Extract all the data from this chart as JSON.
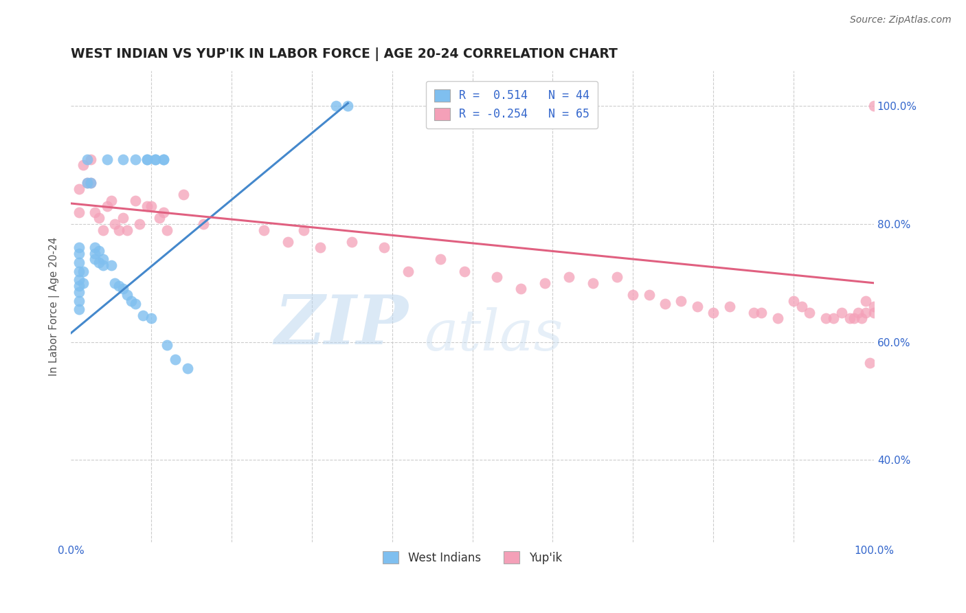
{
  "title": "WEST INDIAN VS YUP'IK IN LABOR FORCE | AGE 20-24 CORRELATION CHART",
  "source": "Source: ZipAtlas.com",
  "ylabel": "In Labor Force | Age 20-24",
  "xlim": [
    0.0,
    1.0
  ],
  "ylim": [
    0.26,
    1.06
  ],
  "blue_color": "#7fbfef",
  "pink_color": "#f4a0b8",
  "line_blue": "#4488cc",
  "line_pink": "#e06080",
  "watermark_zip": "ZIP",
  "watermark_atlas": "atlas",
  "west_indians_x": [
    0.02,
    0.045,
    0.065,
    0.08,
    0.095,
    0.095,
    0.105,
    0.105,
    0.115,
    0.115,
    0.01,
    0.01,
    0.01,
    0.01,
    0.01,
    0.01,
    0.01,
    0.01,
    0.01,
    0.015,
    0.015,
    0.02,
    0.025,
    0.03,
    0.03,
    0.03,
    0.035,
    0.035,
    0.04,
    0.04,
    0.05,
    0.055,
    0.06,
    0.065,
    0.07,
    0.075,
    0.08,
    0.09,
    0.1,
    0.12,
    0.13,
    0.145,
    0.33,
    0.345
  ],
  "west_indians_y": [
    0.91,
    0.91,
    0.91,
    0.91,
    0.91,
    0.91,
    0.91,
    0.91,
    0.91,
    0.91,
    0.76,
    0.75,
    0.735,
    0.72,
    0.705,
    0.695,
    0.685,
    0.67,
    0.655,
    0.72,
    0.7,
    0.87,
    0.87,
    0.76,
    0.75,
    0.74,
    0.755,
    0.735,
    0.74,
    0.73,
    0.73,
    0.7,
    0.695,
    0.69,
    0.68,
    0.67,
    0.665,
    0.645,
    0.64,
    0.595,
    0.57,
    0.555,
    1.0,
    1.0
  ],
  "yupik_x": [
    0.01,
    0.01,
    0.015,
    0.02,
    0.025,
    0.025,
    0.03,
    0.035,
    0.04,
    0.045,
    0.05,
    0.055,
    0.06,
    0.065,
    0.07,
    0.08,
    0.085,
    0.095,
    0.1,
    0.11,
    0.115,
    0.12,
    0.14,
    0.165,
    0.24,
    0.27,
    0.29,
    0.31,
    0.35,
    0.39,
    0.42,
    0.46,
    0.49,
    0.53,
    0.56,
    0.59,
    0.62,
    0.65,
    0.68,
    0.7,
    0.72,
    0.74,
    0.76,
    0.78,
    0.8,
    0.82,
    0.85,
    0.86,
    0.88,
    0.9,
    0.91,
    0.92,
    0.94,
    0.95,
    0.96,
    0.97,
    0.975,
    0.98,
    0.985,
    0.99,
    0.99,
    0.995,
    1.0,
    1.0,
    1.0
  ],
  "yupik_y": [
    0.86,
    0.82,
    0.9,
    0.87,
    0.91,
    0.87,
    0.82,
    0.81,
    0.79,
    0.83,
    0.84,
    0.8,
    0.79,
    0.81,
    0.79,
    0.84,
    0.8,
    0.83,
    0.83,
    0.81,
    0.82,
    0.79,
    0.85,
    0.8,
    0.79,
    0.77,
    0.79,
    0.76,
    0.77,
    0.76,
    0.72,
    0.74,
    0.72,
    0.71,
    0.69,
    0.7,
    0.71,
    0.7,
    0.71,
    0.68,
    0.68,
    0.665,
    0.67,
    0.66,
    0.65,
    0.66,
    0.65,
    0.65,
    0.64,
    0.67,
    0.66,
    0.65,
    0.64,
    0.64,
    0.65,
    0.64,
    0.64,
    0.65,
    0.64,
    0.65,
    0.67,
    0.565,
    0.66,
    0.65,
    1.0
  ],
  "blue_trendline_x": [
    0.0,
    0.345
  ],
  "blue_trendline_y_start": 0.615,
  "blue_trendline_y_end": 1.005,
  "pink_trendline_x": [
    0.0,
    1.0
  ],
  "pink_trendline_y_start": 0.835,
  "pink_trendline_y_end": 0.7
}
